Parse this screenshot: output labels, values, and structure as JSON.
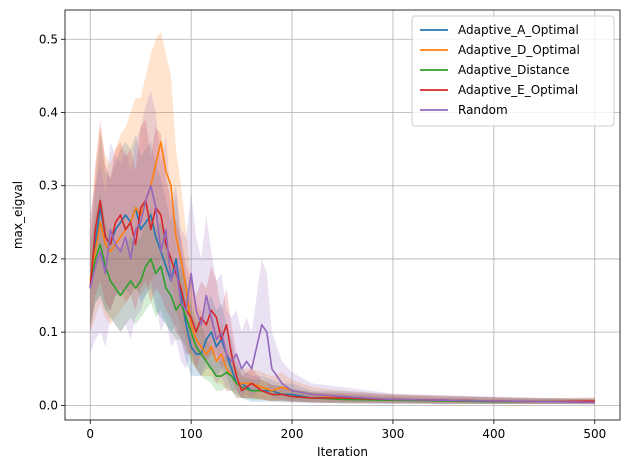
{
  "chart_data": {
    "type": "line",
    "xlabel": "Iteration",
    "ylabel": "max_eigval",
    "xlim": [
      -25,
      525
    ],
    "ylim": [
      -0.02,
      0.54
    ],
    "xticks": [
      0,
      100,
      200,
      300,
      400,
      500
    ],
    "yticks": [
      0.0,
      0.1,
      0.2,
      0.3,
      0.4,
      0.5
    ],
    "grid": true,
    "legend_position": "top-right",
    "series": [
      {
        "name": "Adaptive_A_Optimal",
        "color": "#1f77b4",
        "x": [
          0,
          5,
          10,
          15,
          20,
          25,
          30,
          35,
          40,
          45,
          50,
          55,
          60,
          65,
          70,
          75,
          80,
          85,
          90,
          95,
          100,
          105,
          110,
          115,
          120,
          125,
          130,
          135,
          140,
          145,
          150,
          160,
          170,
          180,
          190,
          200,
          220,
          250,
          300,
          350,
          400,
          450,
          500
        ],
        "values": [
          0.16,
          0.22,
          0.27,
          0.23,
          0.22,
          0.24,
          0.25,
          0.26,
          0.25,
          0.27,
          0.24,
          0.25,
          0.26,
          0.23,
          0.21,
          0.19,
          0.17,
          0.2,
          0.15,
          0.11,
          0.08,
          0.07,
          0.07,
          0.09,
          0.1,
          0.08,
          0.09,
          0.07,
          0.05,
          0.03,
          0.03,
          0.02,
          0.02,
          0.02,
          0.015,
          0.015,
          0.01,
          0.01,
          0.008,
          0.007,
          0.006,
          0.005,
          0.005
        ],
        "lower": [
          0.1,
          0.14,
          0.15,
          0.13,
          0.13,
          0.15,
          0.15,
          0.16,
          0.15,
          0.17,
          0.14,
          0.15,
          0.16,
          0.13,
          0.12,
          0.11,
          0.1,
          0.11,
          0.09,
          0.06,
          0.04,
          0.04,
          0.04,
          0.05,
          0.05,
          0.04,
          0.05,
          0.04,
          0.02,
          0.01,
          0.01,
          0.005,
          0.005,
          0.005,
          0.004,
          0.004,
          0.003,
          0.003,
          0.002,
          0.002,
          0.002,
          0.002,
          0.002
        ],
        "upper": [
          0.22,
          0.3,
          0.37,
          0.32,
          0.31,
          0.33,
          0.35,
          0.36,
          0.35,
          0.37,
          0.34,
          0.35,
          0.36,
          0.33,
          0.31,
          0.28,
          0.25,
          0.29,
          0.22,
          0.17,
          0.13,
          0.11,
          0.11,
          0.14,
          0.15,
          0.13,
          0.14,
          0.11,
          0.09,
          0.06,
          0.05,
          0.04,
          0.04,
          0.035,
          0.03,
          0.03,
          0.02,
          0.02,
          0.015,
          0.013,
          0.011,
          0.01,
          0.009
        ]
      },
      {
        "name": "Adaptive_D_Optimal",
        "color": "#ff7f0e",
        "x": [
          0,
          5,
          10,
          15,
          20,
          25,
          30,
          35,
          40,
          45,
          50,
          55,
          60,
          65,
          70,
          75,
          80,
          85,
          90,
          95,
          100,
          105,
          110,
          115,
          120,
          125,
          130,
          135,
          140,
          145,
          150,
          160,
          170,
          180,
          190,
          200,
          220,
          250,
          300,
          350,
          400,
          450,
          500
        ],
        "values": [
          0.17,
          0.21,
          0.25,
          0.22,
          0.21,
          0.22,
          0.23,
          0.24,
          0.25,
          0.27,
          0.26,
          0.28,
          0.3,
          0.33,
          0.36,
          0.32,
          0.3,
          0.23,
          0.2,
          0.16,
          0.11,
          0.09,
          0.08,
          0.07,
          0.08,
          0.06,
          0.07,
          0.05,
          0.04,
          0.03,
          0.03,
          0.03,
          0.025,
          0.02,
          0.025,
          0.02,
          0.015,
          0.01,
          0.008,
          0.007,
          0.006,
          0.005,
          0.005
        ],
        "lower": [
          0.1,
          0.12,
          0.14,
          0.12,
          0.11,
          0.12,
          0.13,
          0.14,
          0.15,
          0.16,
          0.15,
          0.16,
          0.17,
          0.18,
          0.2,
          0.18,
          0.17,
          0.13,
          0.11,
          0.09,
          0.06,
          0.05,
          0.04,
          0.04,
          0.04,
          0.03,
          0.03,
          0.02,
          0.02,
          0.01,
          0.01,
          0.01,
          0.008,
          0.006,
          0.008,
          0.006,
          0.004,
          0.003,
          0.003,
          0.002,
          0.002,
          0.002,
          0.002
        ],
        "upper": [
          0.25,
          0.32,
          0.38,
          0.34,
          0.33,
          0.35,
          0.37,
          0.38,
          0.4,
          0.42,
          0.42,
          0.45,
          0.48,
          0.5,
          0.51,
          0.48,
          0.45,
          0.35,
          0.3,
          0.24,
          0.17,
          0.14,
          0.13,
          0.11,
          0.13,
          0.1,
          0.11,
          0.08,
          0.07,
          0.05,
          0.05,
          0.05,
          0.045,
          0.04,
          0.045,
          0.035,
          0.025,
          0.02,
          0.015,
          0.013,
          0.011,
          0.01,
          0.009
        ]
      },
      {
        "name": "Adaptive_Distance",
        "color": "#2ca02c",
        "x": [
          0,
          5,
          10,
          15,
          20,
          25,
          30,
          35,
          40,
          45,
          50,
          55,
          60,
          65,
          70,
          75,
          80,
          85,
          90,
          95,
          100,
          105,
          110,
          115,
          120,
          125,
          130,
          135,
          140,
          145,
          150,
          160,
          170,
          180,
          190,
          200,
          220,
          250,
          300,
          350,
          400,
          450,
          500
        ],
        "values": [
          0.16,
          0.2,
          0.22,
          0.19,
          0.17,
          0.16,
          0.15,
          0.16,
          0.17,
          0.16,
          0.17,
          0.19,
          0.2,
          0.18,
          0.19,
          0.16,
          0.15,
          0.13,
          0.14,
          0.12,
          0.1,
          0.08,
          0.07,
          0.06,
          0.05,
          0.04,
          0.04,
          0.045,
          0.04,
          0.03,
          0.025,
          0.02,
          0.02,
          0.015,
          0.015,
          0.012,
          0.01,
          0.008,
          0.007,
          0.006,
          0.005,
          0.005,
          0.005
        ],
        "lower": [
          0.11,
          0.14,
          0.15,
          0.13,
          0.12,
          0.11,
          0.1,
          0.11,
          0.12,
          0.11,
          0.12,
          0.13,
          0.14,
          0.12,
          0.13,
          0.11,
          0.1,
          0.09,
          0.09,
          0.08,
          0.06,
          0.05,
          0.04,
          0.035,
          0.03,
          0.02,
          0.02,
          0.025,
          0.02,
          0.015,
          0.01,
          0.008,
          0.008,
          0.006,
          0.006,
          0.005,
          0.004,
          0.003,
          0.003,
          0.002,
          0.002,
          0.002,
          0.002
        ],
        "upper": [
          0.21,
          0.26,
          0.29,
          0.25,
          0.23,
          0.22,
          0.21,
          0.22,
          0.23,
          0.22,
          0.23,
          0.25,
          0.27,
          0.24,
          0.25,
          0.22,
          0.2,
          0.18,
          0.19,
          0.17,
          0.14,
          0.12,
          0.11,
          0.09,
          0.08,
          0.06,
          0.06,
          0.07,
          0.06,
          0.05,
          0.04,
          0.035,
          0.035,
          0.028,
          0.026,
          0.022,
          0.018,
          0.015,
          0.012,
          0.01,
          0.009,
          0.009,
          0.009
        ]
      },
      {
        "name": "Adaptive_E_Optimal",
        "color": "#d62728",
        "x": [
          0,
          5,
          10,
          15,
          20,
          25,
          30,
          35,
          40,
          45,
          50,
          55,
          60,
          65,
          70,
          75,
          80,
          85,
          90,
          95,
          100,
          105,
          110,
          115,
          120,
          125,
          130,
          135,
          140,
          145,
          150,
          160,
          170,
          180,
          190,
          200,
          220,
          250,
          300,
          350,
          400,
          450,
          500
        ],
        "values": [
          0.16,
          0.24,
          0.28,
          0.23,
          0.22,
          0.25,
          0.26,
          0.24,
          0.25,
          0.22,
          0.27,
          0.28,
          0.24,
          0.27,
          0.26,
          0.22,
          0.2,
          0.18,
          0.16,
          0.13,
          0.12,
          0.1,
          0.12,
          0.11,
          0.13,
          0.12,
          0.09,
          0.11,
          0.07,
          0.04,
          0.02,
          0.03,
          0.02,
          0.015,
          0.015,
          0.012,
          0.01,
          0.01,
          0.008,
          0.007,
          0.006,
          0.005,
          0.006
        ],
        "lower": [
          0.1,
          0.15,
          0.17,
          0.14,
          0.13,
          0.15,
          0.16,
          0.14,
          0.15,
          0.13,
          0.16,
          0.17,
          0.14,
          0.16,
          0.15,
          0.13,
          0.12,
          0.1,
          0.09,
          0.07,
          0.07,
          0.05,
          0.07,
          0.06,
          0.07,
          0.07,
          0.05,
          0.06,
          0.04,
          0.02,
          0.01,
          0.01,
          0.008,
          0.006,
          0.006,
          0.005,
          0.004,
          0.004,
          0.003,
          0.003,
          0.002,
          0.002,
          0.002
        ],
        "upper": [
          0.23,
          0.33,
          0.39,
          0.33,
          0.31,
          0.35,
          0.36,
          0.34,
          0.35,
          0.32,
          0.38,
          0.39,
          0.34,
          0.38,
          0.37,
          0.31,
          0.28,
          0.25,
          0.23,
          0.19,
          0.17,
          0.15,
          0.17,
          0.16,
          0.19,
          0.17,
          0.13,
          0.16,
          0.11,
          0.07,
          0.04,
          0.05,
          0.035,
          0.028,
          0.026,
          0.022,
          0.018,
          0.017,
          0.014,
          0.012,
          0.011,
          0.009,
          0.011
        ]
      },
      {
        "name": "Random",
        "color": "#9467bd",
        "x": [
          0,
          5,
          10,
          15,
          20,
          25,
          30,
          35,
          40,
          45,
          50,
          55,
          60,
          65,
          70,
          75,
          80,
          85,
          90,
          95,
          100,
          105,
          110,
          115,
          120,
          125,
          130,
          135,
          140,
          145,
          150,
          155,
          160,
          165,
          170,
          175,
          180,
          190,
          200,
          220,
          250,
          300,
          350,
          400,
          450,
          500
        ],
        "values": [
          0.16,
          0.19,
          0.21,
          0.18,
          0.24,
          0.22,
          0.21,
          0.23,
          0.2,
          0.24,
          0.25,
          0.28,
          0.3,
          0.27,
          0.21,
          0.24,
          0.17,
          0.19,
          0.14,
          0.13,
          0.18,
          0.13,
          0.11,
          0.15,
          0.12,
          0.09,
          0.1,
          0.07,
          0.06,
          0.07,
          0.05,
          0.06,
          0.05,
          0.08,
          0.11,
          0.1,
          0.05,
          0.03,
          0.02,
          0.015,
          0.012,
          0.008,
          0.007,
          0.006,
          0.005,
          0.004
        ],
        "lower": [
          0.07,
          0.09,
          0.1,
          0.08,
          0.12,
          0.11,
          0.1,
          0.11,
          0.09,
          0.12,
          0.13,
          0.15,
          0.17,
          0.14,
          0.1,
          0.12,
          0.08,
          0.09,
          0.06,
          0.05,
          0.08,
          0.05,
          0.04,
          0.06,
          0.05,
          0.03,
          0.04,
          0.02,
          0.02,
          0.02,
          0.01,
          0.02,
          0.01,
          0.02,
          0.04,
          0.03,
          0.01,
          0.008,
          0.005,
          0.004,
          0.003,
          0.003,
          0.002,
          0.002,
          0.002,
          0.001
        ],
        "upper": [
          0.26,
          0.3,
          0.33,
          0.29,
          0.36,
          0.34,
          0.33,
          0.35,
          0.32,
          0.36,
          0.38,
          0.41,
          0.43,
          0.4,
          0.33,
          0.37,
          0.28,
          0.3,
          0.24,
          0.23,
          0.29,
          0.23,
          0.2,
          0.26,
          0.21,
          0.17,
          0.18,
          0.13,
          0.12,
          0.13,
          0.1,
          0.12,
          0.1,
          0.15,
          0.2,
          0.18,
          0.1,
          0.06,
          0.045,
          0.03,
          0.025,
          0.016,
          0.014,
          0.012,
          0.01,
          0.008
        ]
      }
    ]
  }
}
